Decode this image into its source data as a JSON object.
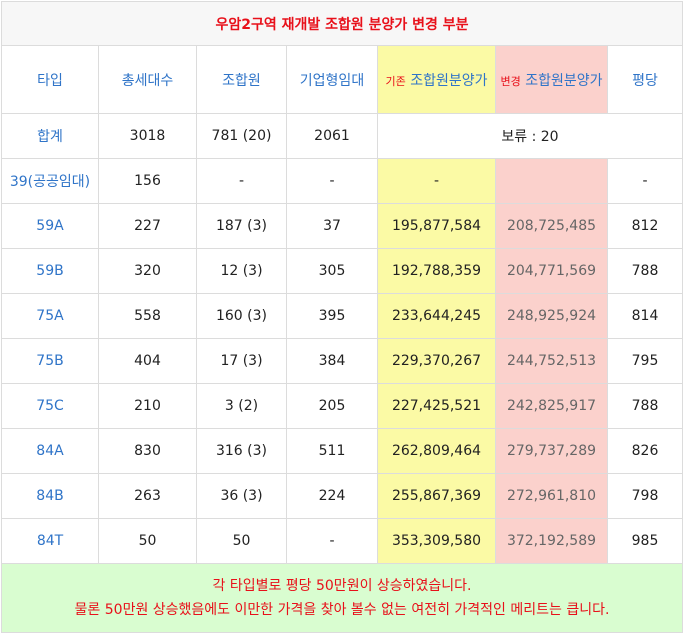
{
  "title": "우암2구역 재개발 조합원 분양가 변경 부분",
  "headers": {
    "type": "타입",
    "total_units": "총세대수",
    "members": "조합원",
    "rental": "기업형임대",
    "prev_tag": "기존",
    "prev_label": "조합원분양가",
    "next_tag": "변경",
    "next_label": "조합원분양가",
    "per_pyeong": "평당"
  },
  "summary": {
    "label": "합계",
    "total_units": "3018",
    "members": "781 (20)",
    "rental": "2061",
    "note": "보류 : 20"
  },
  "rows": [
    {
      "type": "39(공공임대)",
      "total": "156",
      "members": "-",
      "rental": "-",
      "prev": "-",
      "next": "",
      "pp": "-"
    },
    {
      "type": "59A",
      "total": "227",
      "members": "187 (3)",
      "rental": "37",
      "prev": "195,877,584",
      "next": "208,725,485",
      "pp": "812"
    },
    {
      "type": "59B",
      "total": "320",
      "members": "12 (3)",
      "rental": "305",
      "prev": "192,788,359",
      "next": "204,771,569",
      "pp": "788"
    },
    {
      "type": "75A",
      "total": "558",
      "members": "160 (3)",
      "rental": "395",
      "prev": "233,644,245",
      "next": "248,925,924",
      "pp": "814"
    },
    {
      "type": "75B",
      "total": "404",
      "members": "17 (3)",
      "rental": "384",
      "prev": "229,370,267",
      "next": "244,752,513",
      "pp": "795"
    },
    {
      "type": "75C",
      "total": "210",
      "members": "3 (2)",
      "rental": "205",
      "prev": "227,425,521",
      "next": "242,825,917",
      "pp": "788"
    },
    {
      "type": "84A",
      "total": "830",
      "members": "316 (3)",
      "rental": "511",
      "prev": "262,809,464",
      "next": "279,737,289",
      "pp": "826"
    },
    {
      "type": "84B",
      "total": "263",
      "members": "36 (3)",
      "rental": "224",
      "prev": "255,867,369",
      "next": "272,961,810",
      "pp": "798"
    },
    {
      "type": "84T",
      "total": "50",
      "members": "50",
      "rental": "-",
      "prev": "353,309,580",
      "next": "372,192,589",
      "pp": "985"
    }
  ],
  "footer": {
    "line1": "각 타입별로 평당 50만원이 상승하였습니다.",
    "line2": "물론 50만원 상승했음에도 이만한 가격을 찾아 볼수 없는 여전히 가격적인 메리트는 큽니다."
  },
  "colors": {
    "accent_red": "#e8101a",
    "header_blue": "#2f74c8",
    "prev_yellow": "#fbfaa5",
    "next_pink": "#fbd1cc",
    "footer_green": "#d9fdd0"
  }
}
